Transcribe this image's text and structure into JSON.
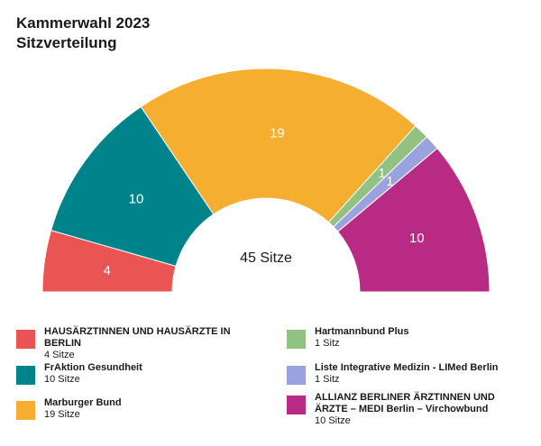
{
  "header": {
    "title": "Kammerwahl 2023",
    "subtitle": "Sitzverteilung"
  },
  "center_label": "45 Sitze",
  "chart_data": {
    "type": "pie",
    "variant": "half-donut",
    "title": "Kammerwahl 2023",
    "subtitle": "Sitzverteilung",
    "total": 45,
    "total_label": "45 Sitze",
    "series": [
      {
        "name": "HAUSÄRZTINNEN UND HAUSÄRZTE IN BERLIN",
        "value": 4,
        "seats_label": "4 Sitze",
        "label": "4",
        "color": "#ea5553"
      },
      {
        "name": "FrAktion Gesundheit",
        "value": 10,
        "seats_label": "10 Sitze",
        "label": "10",
        "color": "#00838b"
      },
      {
        "name": "Marburger Bund",
        "value": 19,
        "seats_label": "19 Sitze",
        "label": "19",
        "color": "#f5ae30"
      },
      {
        "name": "Hartmannbund Plus",
        "value": 1,
        "seats_label": "1 Sitz",
        "label": "1",
        "color": "#91c282"
      },
      {
        "name": "Liste Integrative Medizin - LIMed Berlin",
        "value": 1,
        "seats_label": "1 Sitz",
        "label": "1",
        "color": "#9aa3e0"
      },
      {
        "name": "ALLIANZ BERLINER ÄRZTINNEN UND ÄRZTE – MEDI Berlin – Virchowbund",
        "value": 10,
        "seats_label": "10 Sitze",
        "label": "10",
        "color": "#b92a85"
      }
    ],
    "legend": "bottom"
  }
}
